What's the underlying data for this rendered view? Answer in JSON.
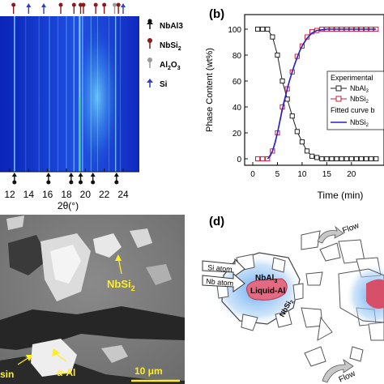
{
  "panels": {
    "a": {
      "x_axis_label": "2θ(°)",
      "x_ticks": [
        "12",
        "14",
        "16",
        "18",
        "20",
        "22",
        "24"
      ],
      "legend": [
        {
          "label": "NbAl3",
          "sub": "",
          "marker": "black",
          "color": "#111111"
        },
        {
          "label": "NbSi",
          "sub": "2",
          "marker": "darkred",
          "color": "#8b1a1a"
        },
        {
          "label": "Al",
          "sub": "2",
          "label2": "O",
          "sub2": "3",
          "marker": "gray",
          "color": "#9a9a9a"
        },
        {
          "label": "Si",
          "sub": "",
          "marker": "blue",
          "color": "#2f3fc0"
        }
      ],
      "colors": {
        "background": "#1633c8",
        "line": "#7fd8ff",
        "bright": "#e8ffff",
        "green": "#3cd36a"
      }
    },
    "b": {
      "label": "(b)",
      "legend": {
        "title": "Experimental",
        "items": [
          {
            "label": "NbAl",
            "sub": "3",
            "color": "#222222"
          },
          {
            "label": "NbSi",
            "sub": "2",
            "color": "#c81e3c"
          }
        ],
        "fit_title": "Fitted curve b",
        "fit_item": {
          "label": "NbSi",
          "sub": "2",
          "color": "#2222cc"
        }
      }
    },
    "c": {
      "labels": {
        "nbsi2": "NbSi",
        "nbsi2_sub": "2",
        "alpha_al": "α-Al",
        "resin": "sin",
        "scale": "10 μm"
      }
    },
    "d": {
      "label": "(d)",
      "labels": {
        "flow_top": "Flow",
        "flow_bottom": "Flow",
        "si_atom": "Si atom",
        "nb_atom": "Nb atom",
        "nbal3": "NbAl",
        "nbal3_sub": "3",
        "liquid_al": "Liquid-Al",
        "nbsi2": "NbSi",
        "nbsi2_sub": "2"
      }
    }
  },
  "chart_data": [
    {
      "type": "line",
      "panel": "b",
      "xlabel": "Time (min)",
      "ylabel": "Phase Content (wt%)",
      "xlim": [
        0,
        25
      ],
      "ylim": [
        0,
        100
      ],
      "x_ticks": [
        0,
        5,
        10,
        15,
        20
      ],
      "y_ticks": [
        0,
        20,
        40,
        60,
        80,
        100
      ],
      "series": [
        {
          "name": "NbAl3",
          "style": "markers+line",
          "color": "#222222",
          "x": [
            1,
            2,
            3,
            4,
            5,
            6,
            7,
            8,
            9,
            10,
            11,
            12,
            13,
            14,
            15,
            16,
            17,
            18,
            19,
            20,
            21,
            22,
            23,
            24,
            25
          ],
          "values": [
            100,
            100,
            100,
            94,
            80,
            60,
            46,
            33,
            21,
            13,
            6,
            2,
            1,
            0,
            0,
            0,
            0,
            0,
            0,
            0,
            0,
            0,
            0,
            0,
            0
          ]
        },
        {
          "name": "NbSi2",
          "style": "markers+line",
          "color": "#c81e3c",
          "x": [
            1,
            2,
            3,
            4,
            5,
            6,
            7,
            8,
            9,
            10,
            11,
            12,
            13,
            14,
            15,
            16,
            17,
            18,
            19,
            20,
            21,
            22,
            23,
            24,
            25
          ],
          "values": [
            0,
            0,
            0,
            6,
            20,
            40,
            54,
            67,
            79,
            87,
            94,
            98,
            99,
            100,
            100,
            100,
            100,
            100,
            100,
            100,
            100,
            100,
            100,
            100,
            100
          ]
        },
        {
          "name": "NbSi2 fit",
          "style": "line",
          "color": "#2222cc",
          "x": [
            3,
            3.5,
            4,
            4.5,
            5,
            5.5,
            6,
            6.5,
            7,
            7.5,
            8,
            8.5,
            9,
            9.5,
            10,
            10.5,
            11,
            11.5,
            12,
            12.5,
            13,
            14,
            15,
            16,
            17,
            18,
            19,
            20,
            21,
            22,
            23,
            24,
            25
          ],
          "values": [
            0,
            2,
            6,
            12,
            20,
            29,
            38,
            46,
            54,
            61,
            67,
            73,
            78,
            83,
            87,
            90,
            93,
            95,
            97,
            98,
            99,
            99.5,
            100,
            100,
            100,
            100,
            100,
            100,
            100,
            100,
            100,
            100,
            100
          ]
        }
      ]
    }
  ]
}
